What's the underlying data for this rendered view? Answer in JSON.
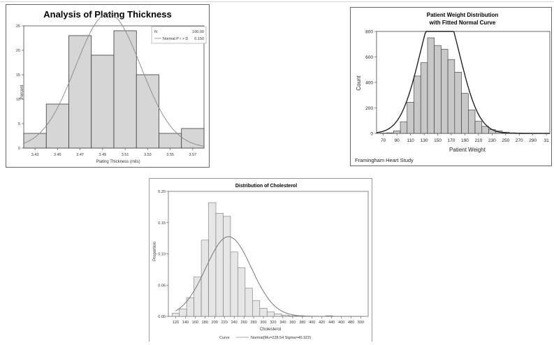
{
  "chart_data": [
    {
      "type": "bar",
      "title": "Analysis of Plating Thickness",
      "xlabel": "Plating Thickness (mils)",
      "ylabel": "Percent",
      "categories": [
        "3.43",
        "3.45",
        "3.47",
        "3.49",
        "3.51",
        "3.53",
        "3.55",
        "3.57"
      ],
      "values": [
        3,
        9,
        23,
        19,
        24,
        15,
        3,
        4
      ],
      "ylim": [
        0,
        25
      ],
      "yticks": [
        "0",
        "5",
        "10",
        "15",
        "20",
        "25"
      ],
      "grid": false,
      "legend_position": "top-right",
      "legend": {
        "header_label": "N",
        "header_value": "100.00",
        "curve_label": "Normal P r > D",
        "curve_value": "0.150"
      },
      "curve": {
        "type": "normal",
        "mean": 3.495,
        "sd": 0.029
      }
    },
    {
      "type": "bar",
      "title_lines": [
        "Patient Weight Distribution",
        "with Fitted Normal Curve"
      ],
      "xlabel": "Patient Weight",
      "ylabel": "Count",
      "footnote": "Framingham Heart Study",
      "xticks": [
        "70",
        "90",
        "110",
        "130",
        "150",
        "170",
        "190",
        "210",
        "230",
        "250",
        "270",
        "290",
        "31"
      ],
      "yticks": [
        "0",
        "200",
        "400",
        "600",
        "800"
      ],
      "ylim": [
        0,
        800
      ],
      "bin_width": 10,
      "bins_start": [
        65,
        75,
        85,
        95,
        105,
        115,
        125,
        135,
        145,
        155,
        165,
        175,
        185,
        195,
        205,
        215,
        225,
        235,
        245,
        255,
        265,
        275,
        285,
        295
      ],
      "values": [
        2,
        5,
        20,
        90,
        245,
        450,
        555,
        750,
        690,
        660,
        580,
        480,
        315,
        185,
        95,
        55,
        30,
        20,
        10,
        5,
        3,
        2,
        1,
        1
      ],
      "grid": false,
      "curve": {
        "type": "normal",
        "mean": 153,
        "sd": 29
      }
    },
    {
      "type": "bar",
      "title": "Distribution of Cholesterol",
      "xlabel": "Cholesterol",
      "ylabel": "Proportion",
      "xticks": [
        "120",
        "140",
        "160",
        "180",
        "200",
        "220",
        "240",
        "260",
        "280",
        "300",
        "320",
        "340",
        "360",
        "380",
        "400",
        "420",
        "440",
        "460",
        "480",
        "500"
      ],
      "yticks": [
        "0.00",
        "0.05",
        "0.10",
        "0.15",
        "0.20"
      ],
      "ylim": [
        0,
        0.2
      ],
      "bin_width": 15,
      "bins_start": [
        112.5,
        127.5,
        142.5,
        157.5,
        172.5,
        187.5,
        202.5,
        217.5,
        232.5,
        247.5,
        262.5,
        277.5,
        292.5,
        307.5,
        322.5,
        337.5,
        352.5,
        367.5,
        382.5,
        397.5,
        412.5,
        427.5
      ],
      "values": [
        0.005,
        0.012,
        0.03,
        0.063,
        0.122,
        0.182,
        0.165,
        0.16,
        0.103,
        0.078,
        0.045,
        0.025,
        0.013,
        0.007,
        0.004,
        0.002,
        0.001,
        0.001,
        0,
        0,
        0,
        0.001
      ],
      "grid": false,
      "legend_position": "bottom",
      "legend": {
        "label": "Curve",
        "entry": "Normal(Mu=228.54 Sigma=46.922)"
      },
      "curve": {
        "type": "normal",
        "mean": 228.54,
        "sd": 46.922
      }
    }
  ]
}
